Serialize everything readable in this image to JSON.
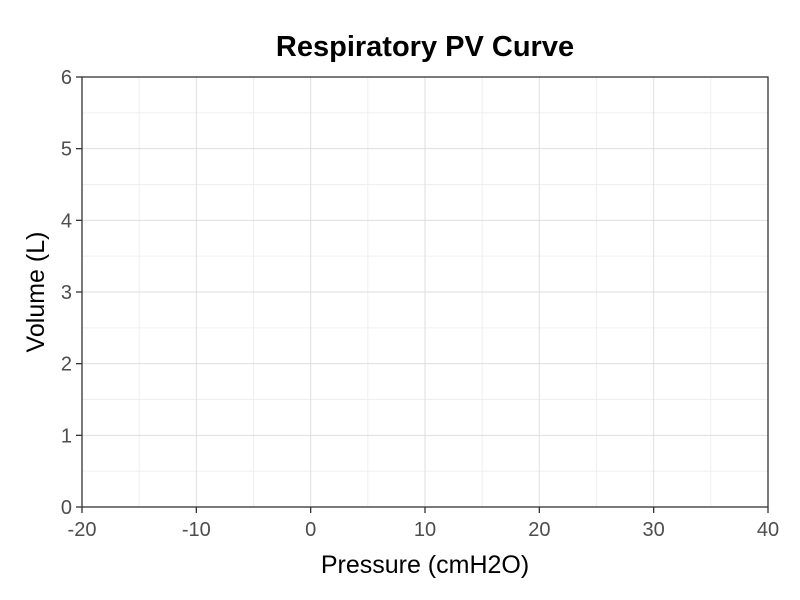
{
  "chart_data": {
    "type": "line",
    "title": "Respiratory PV Curve",
    "xlabel": "Pressure (cmH2O)",
    "ylabel": "Volume (L)",
    "xlim": [
      -20,
      40
    ],
    "ylim": [
      0,
      6
    ],
    "x_ticks": [
      -20,
      -10,
      0,
      10,
      20,
      30,
      40
    ],
    "y_ticks": [
      0,
      1,
      2,
      3,
      4,
      5,
      6
    ],
    "grid": true,
    "series": []
  }
}
